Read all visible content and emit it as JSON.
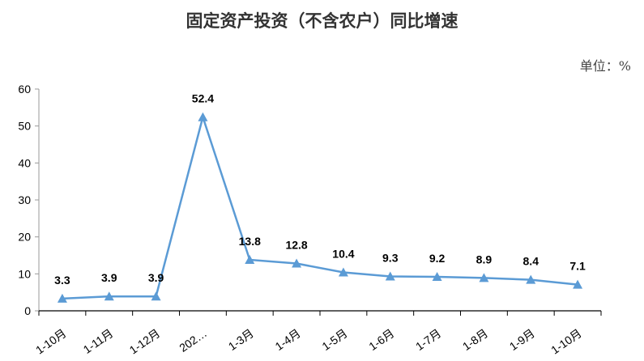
{
  "chart_data": {
    "type": "line",
    "title": "固定资产投资（不含农户）同比增速",
    "unit_label": "单位：%",
    "categories": [
      "1-10月",
      "1-11月",
      "1-12月",
      "202…",
      "1-3月",
      "1-4月",
      "1-5月",
      "1-6月",
      "1-7月",
      "1-8月",
      "1-9月",
      "1-10月"
    ],
    "values": [
      3.3,
      3.9,
      3.9,
      52.4,
      13.8,
      12.8,
      10.4,
      9.3,
      9.2,
      8.9,
      8.4,
      7.1
    ],
    "data_labels": [
      "3.3",
      "3.9",
      "3.9",
      "52.4",
      "13.8",
      "12.8",
      "10.4",
      "9.3",
      "9.2",
      "8.9",
      "8.4",
      "7.1"
    ],
    "ylim": [
      0,
      60
    ],
    "yticks": [
      0,
      10,
      20,
      30,
      40,
      50,
      60
    ],
    "grid": false,
    "marker": "triangle",
    "line_color": "#5b9bd5"
  }
}
